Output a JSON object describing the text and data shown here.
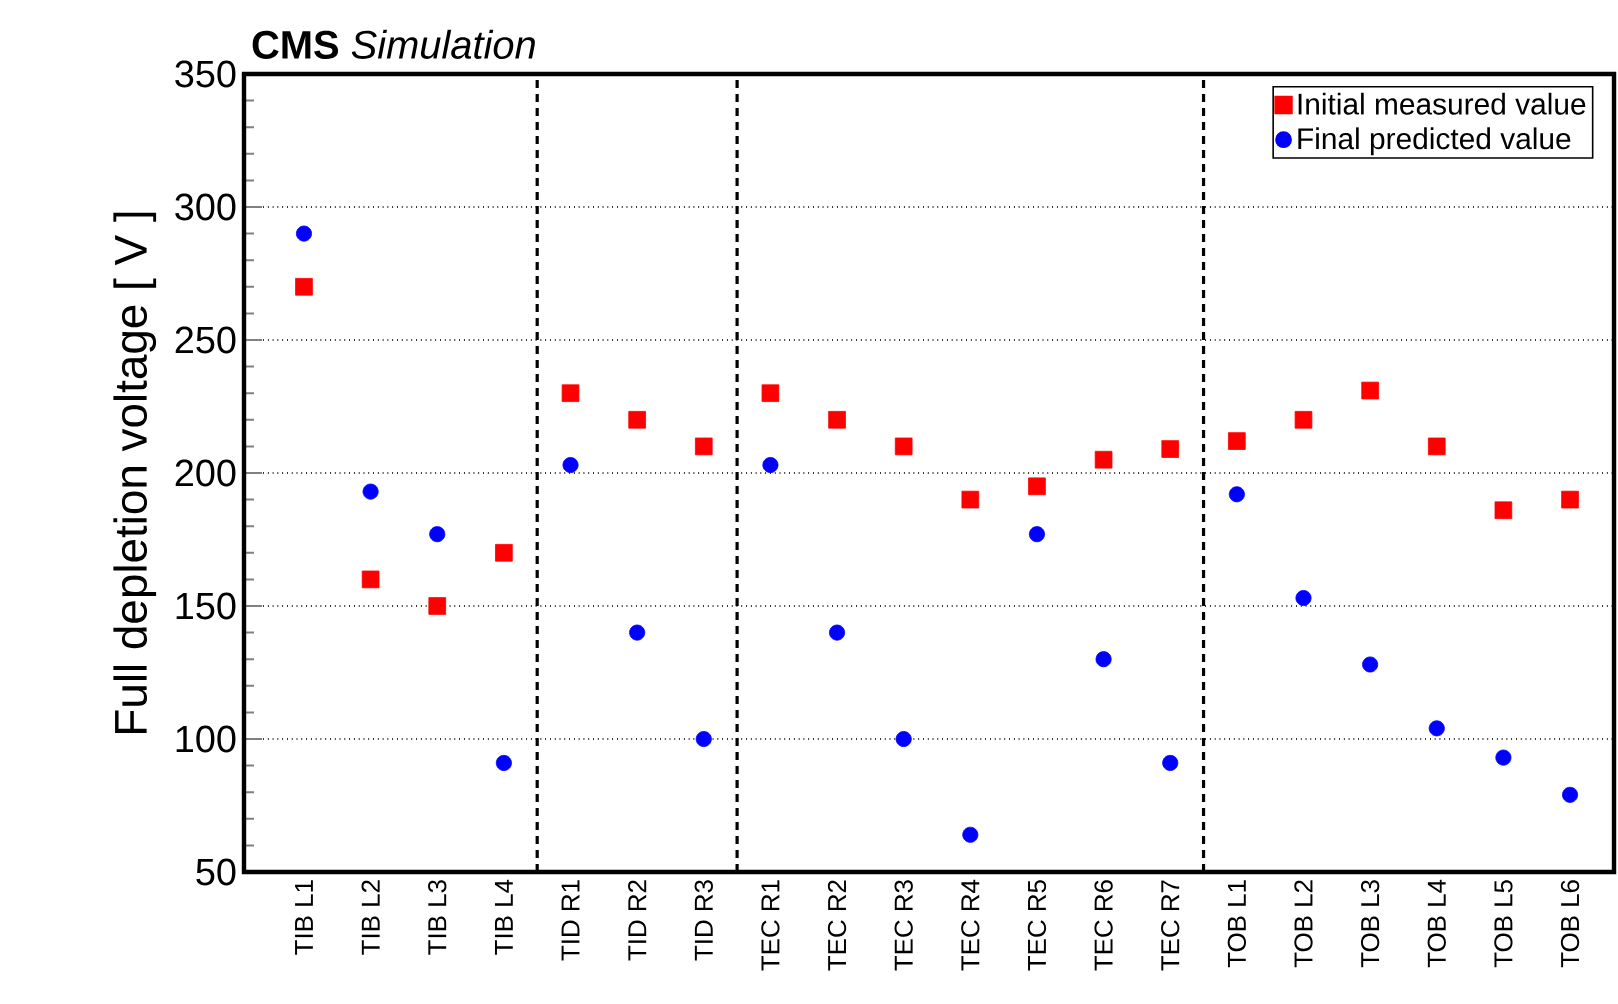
{
  "chart_data": {
    "type": "scatter",
    "title": "**CMS** *Simulation*",
    "ylabel": "Full depletion voltage [ V ]",
    "categories": [
      "TIB L1",
      "TIB L2",
      "TIB L3",
      "TIB L4",
      "TID R1",
      "TID R2",
      "TID R3",
      "TEC R1",
      "TEC R2",
      "TEC R3",
      "TEC R4",
      "TEC R5",
      "TEC R6",
      "TEC R7",
      "TOB L1",
      "TOB L2",
      "TOB L3",
      "TOB L4",
      "TOB L5",
      "TOB L6"
    ],
    "series": [
      {
        "name": "Initial measured value",
        "color": "#ff0000",
        "marker": "square",
        "values": [
          270,
          160,
          150,
          170,
          230,
          220,
          210,
          230,
          220,
          210,
          190,
          195,
          205,
          209,
          212,
          220,
          231,
          210,
          186,
          190
        ]
      },
      {
        "name": "Final predicted value",
        "color": "#0000ff",
        "marker": "circle",
        "values": [
          290,
          193,
          177,
          91,
          203,
          140,
          100,
          203,
          140,
          100,
          64,
          177,
          130,
          91,
          192,
          153,
          128,
          104,
          93,
          79
        ]
      }
    ],
    "ylim": [
      50,
      350
    ],
    "yticks": [
      50,
      100,
      150,
      200,
      250,
      300,
      350
    ],
    "grid": "y",
    "legend": "top right"
  }
}
